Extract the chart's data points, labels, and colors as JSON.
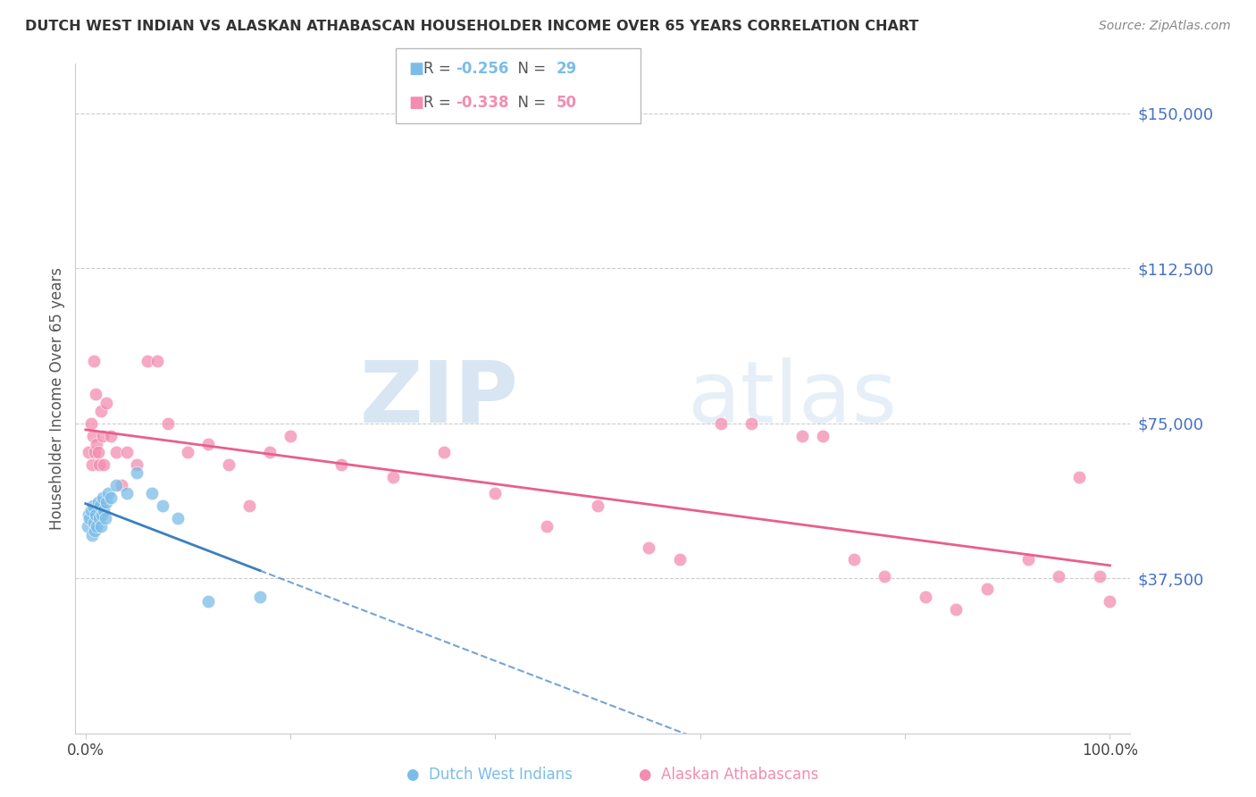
{
  "title": "DUTCH WEST INDIAN VS ALASKAN ATHABASCAN HOUSEHOLDER INCOME OVER 65 YEARS CORRELATION CHART",
  "source": "Source: ZipAtlas.com",
  "ylabel": "Householder Income Over 65 years",
  "r_blue": -0.256,
  "n_blue": 29,
  "r_pink": -0.338,
  "n_pink": 50,
  "blue_color": "#7bbde8",
  "pink_color": "#f48cb0",
  "blue_line_color": "#3a7fc1",
  "pink_line_color": "#e8608a",
  "ytick_labels": [
    "$37,500",
    "$75,000",
    "$112,500",
    "$150,000"
  ],
  "ytick_values": [
    37500,
    75000,
    112500,
    150000
  ],
  "ylim": [
    0,
    162000
  ],
  "xlim": [
    -0.01,
    1.02
  ],
  "xtick_values": [
    0.0,
    0.2,
    0.4,
    0.6,
    0.8,
    1.0
  ],
  "xtick_labels": [
    "0.0%",
    "",
    "",
    "",
    "",
    "100.0%"
  ],
  "watermark_zip": "ZIP",
  "watermark_atlas": "atlas",
  "blue_x": [
    0.002,
    0.003,
    0.004,
    0.005,
    0.006,
    0.007,
    0.008,
    0.009,
    0.01,
    0.011,
    0.012,
    0.013,
    0.014,
    0.015,
    0.016,
    0.017,
    0.018,
    0.019,
    0.02,
    0.022,
    0.025,
    0.03,
    0.04,
    0.05,
    0.065,
    0.075,
    0.09,
    0.12,
    0.17
  ],
  "blue_y": [
    50000,
    53000,
    52000,
    54000,
    48000,
    55000,
    51000,
    49000,
    53000,
    50000,
    56000,
    52000,
    55000,
    50000,
    53000,
    57000,
    54000,
    52000,
    56000,
    58000,
    57000,
    60000,
    58000,
    63000,
    58000,
    55000,
    52000,
    32000,
    33000
  ],
  "pink_x": [
    0.003,
    0.005,
    0.006,
    0.007,
    0.008,
    0.009,
    0.01,
    0.011,
    0.012,
    0.013,
    0.015,
    0.017,
    0.018,
    0.02,
    0.025,
    0.03,
    0.035,
    0.04,
    0.05,
    0.06,
    0.07,
    0.08,
    0.1,
    0.12,
    0.14,
    0.16,
    0.18,
    0.2,
    0.25,
    0.3,
    0.35,
    0.4,
    0.45,
    0.5,
    0.55,
    0.58,
    0.62,
    0.65,
    0.7,
    0.72,
    0.75,
    0.78,
    0.82,
    0.85,
    0.88,
    0.92,
    0.95,
    0.97,
    0.99,
    1.0
  ],
  "pink_y": [
    68000,
    75000,
    65000,
    72000,
    90000,
    68000,
    82000,
    70000,
    68000,
    65000,
    78000,
    72000,
    65000,
    80000,
    72000,
    68000,
    60000,
    68000,
    65000,
    90000,
    90000,
    75000,
    68000,
    70000,
    65000,
    55000,
    68000,
    72000,
    65000,
    62000,
    68000,
    58000,
    50000,
    55000,
    45000,
    42000,
    75000,
    75000,
    72000,
    72000,
    42000,
    38000,
    33000,
    30000,
    35000,
    42000,
    38000,
    62000,
    38000,
    32000
  ]
}
